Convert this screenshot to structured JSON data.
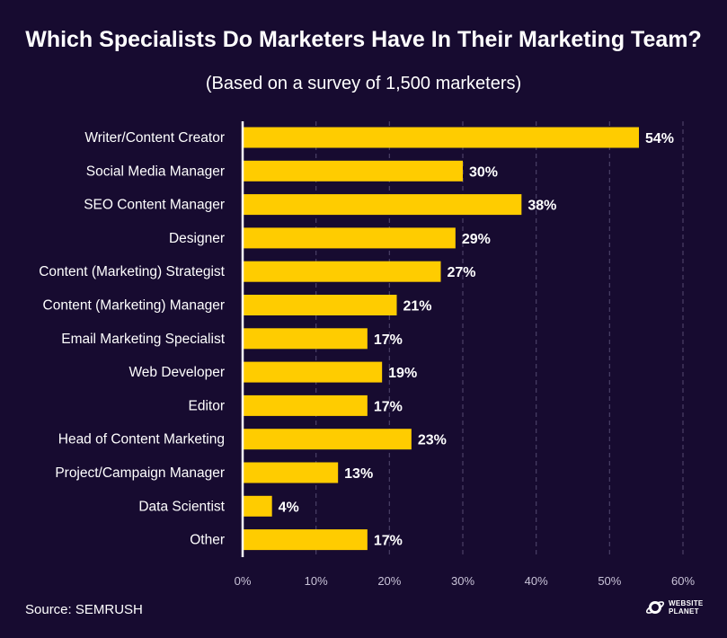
{
  "header": {
    "title": "Which Specialists Do Marketers Have In Their Marketing Team?",
    "subtitle": "(Based on a survey of 1,500 marketers)"
  },
  "footer": {
    "source": "Source: SEMRUSH",
    "logo_line1": "WEBSITE",
    "logo_line2": "PLANET",
    "logo_icon": "planet-icon"
  },
  "colors": {
    "background": "#170b30",
    "bar": "#ffcc00",
    "grid": "#4a4066",
    "axis": "#ffffff",
    "text": "#ffffff",
    "tick_text": "#c9c3d8"
  },
  "chart_data": {
    "type": "bar",
    "orientation": "horizontal",
    "title": "Which Specialists Do Marketers Have In Their Marketing Team?",
    "subtitle": "(Based on a survey of 1,500 marketers)",
    "categories": [
      "Writer/Content Creator",
      "Social Media Manager",
      "SEO Content Manager",
      "Designer",
      "Content (Marketing) Strategist",
      "Content (Marketing) Manager",
      "Email Marketing Specialist",
      "Web Developer",
      "Editor",
      "Head of Content Marketing",
      "Project/Campaign Manager",
      "Data Scientist",
      "Other"
    ],
    "values": [
      54,
      30,
      38,
      29,
      27,
      21,
      17,
      19,
      17,
      23,
      13,
      4,
      17
    ],
    "value_labels": [
      "54%",
      "30%",
      "38%",
      "29%",
      "27%",
      "21%",
      "17%",
      "19%",
      "17%",
      "23%",
      "13%",
      "4%",
      "17%"
    ],
    "xlim": [
      0,
      60
    ],
    "x_ticks": [
      "0%",
      "10%",
      "20%",
      "30%",
      "40%",
      "50%",
      "60%"
    ],
    "grid": true,
    "legend": "none"
  }
}
